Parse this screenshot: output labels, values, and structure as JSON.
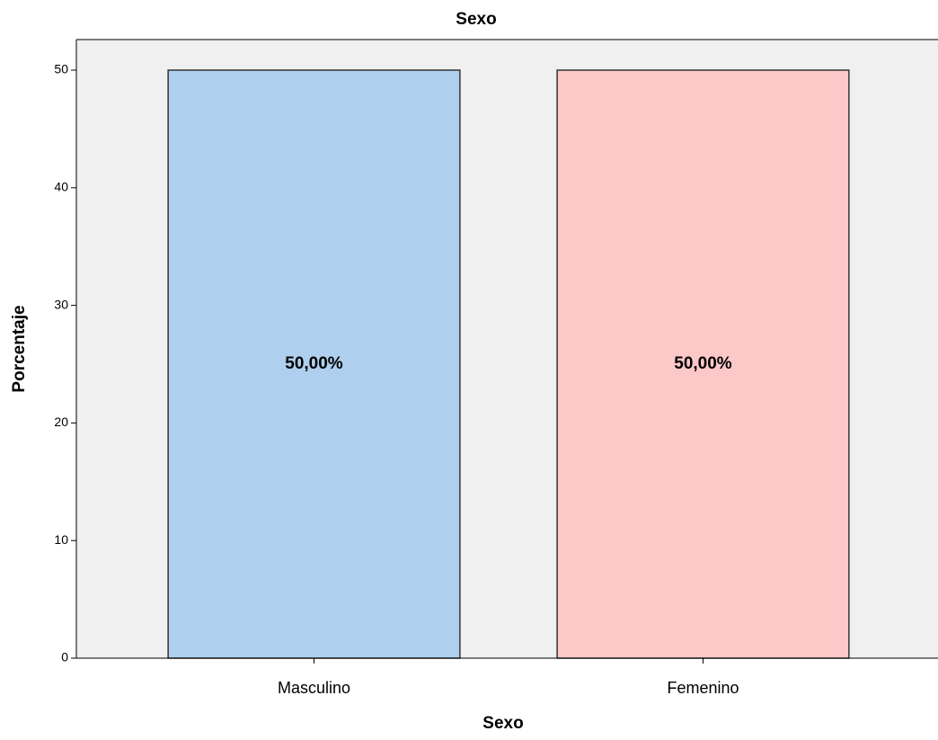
{
  "chart_data": {
    "type": "bar",
    "title": "Sexo",
    "x_label": "Sexo",
    "y_label": "Porcentaje",
    "categories": [
      "Masculino",
      "Femenino"
    ],
    "values": [
      50,
      50
    ],
    "value_labels": [
      "50,00%",
      "50,00%"
    ],
    "colors": [
      "#aecfee",
      "#fdc8c8"
    ],
    "ylim": [
      0,
      52.6
    ],
    "yticks": [
      0,
      10,
      20,
      30,
      40,
      50
    ],
    "grid": false
  }
}
